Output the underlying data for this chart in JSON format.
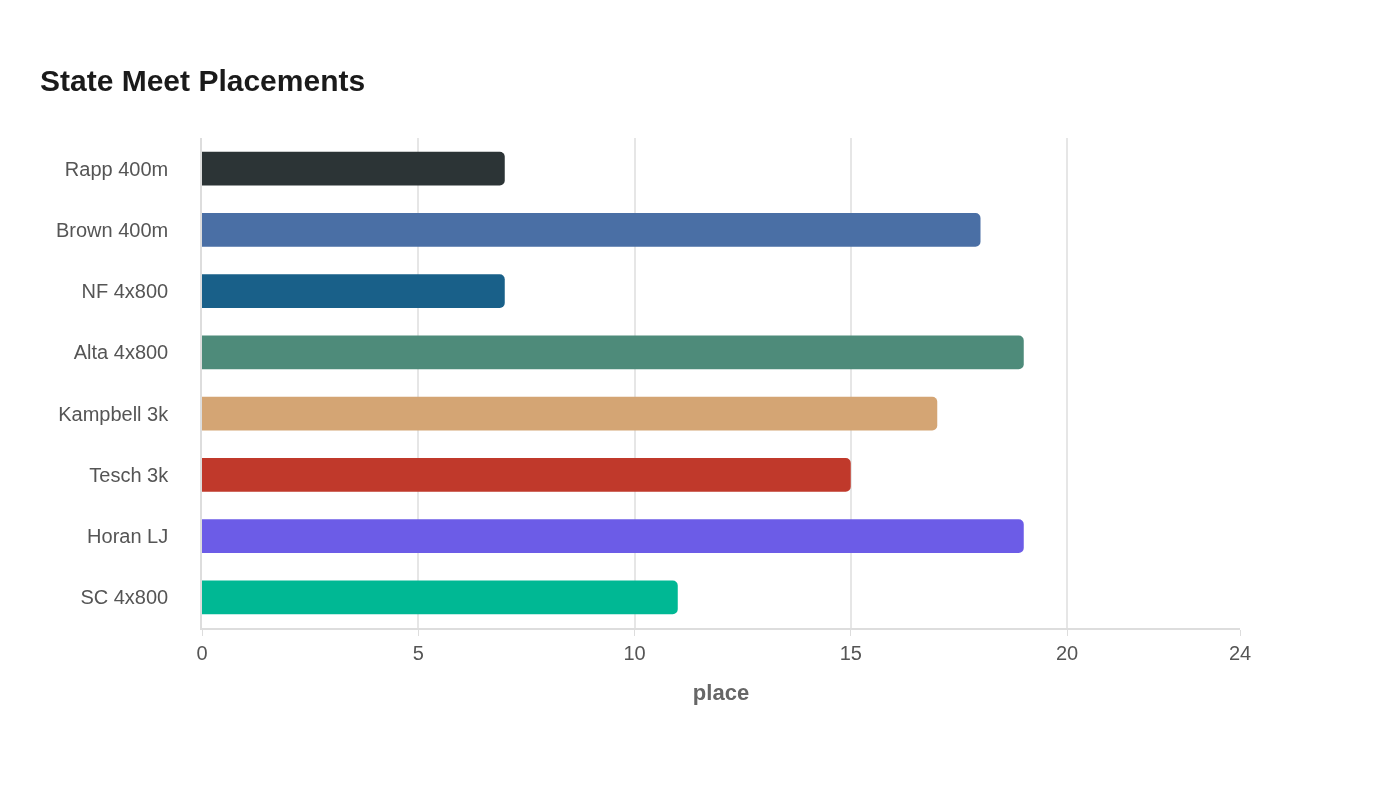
{
  "chart_data": {
    "type": "bar",
    "orientation": "horizontal",
    "title": "State Meet Placements",
    "xlabel": "place",
    "categories": [
      "Rapp 400m",
      "Brown 400m",
      "NF 4x800",
      "Alta 4x800",
      "Kampbell 3k",
      "Tesch 3k",
      "Horan LJ",
      "SC 4x800"
    ],
    "values": [
      7,
      18,
      7,
      19,
      17,
      15,
      19,
      11
    ],
    "colors": [
      "#2c3436",
      "#4a6fa5",
      "#196089",
      "#4e8b7a",
      "#d4a574",
      "#c0392b",
      "#6c5ce7",
      "#00b894"
    ],
    "xlim": [
      0,
      24
    ],
    "xticks": [
      0,
      5,
      10,
      15,
      20,
      24
    ],
    "grid": "x"
  }
}
